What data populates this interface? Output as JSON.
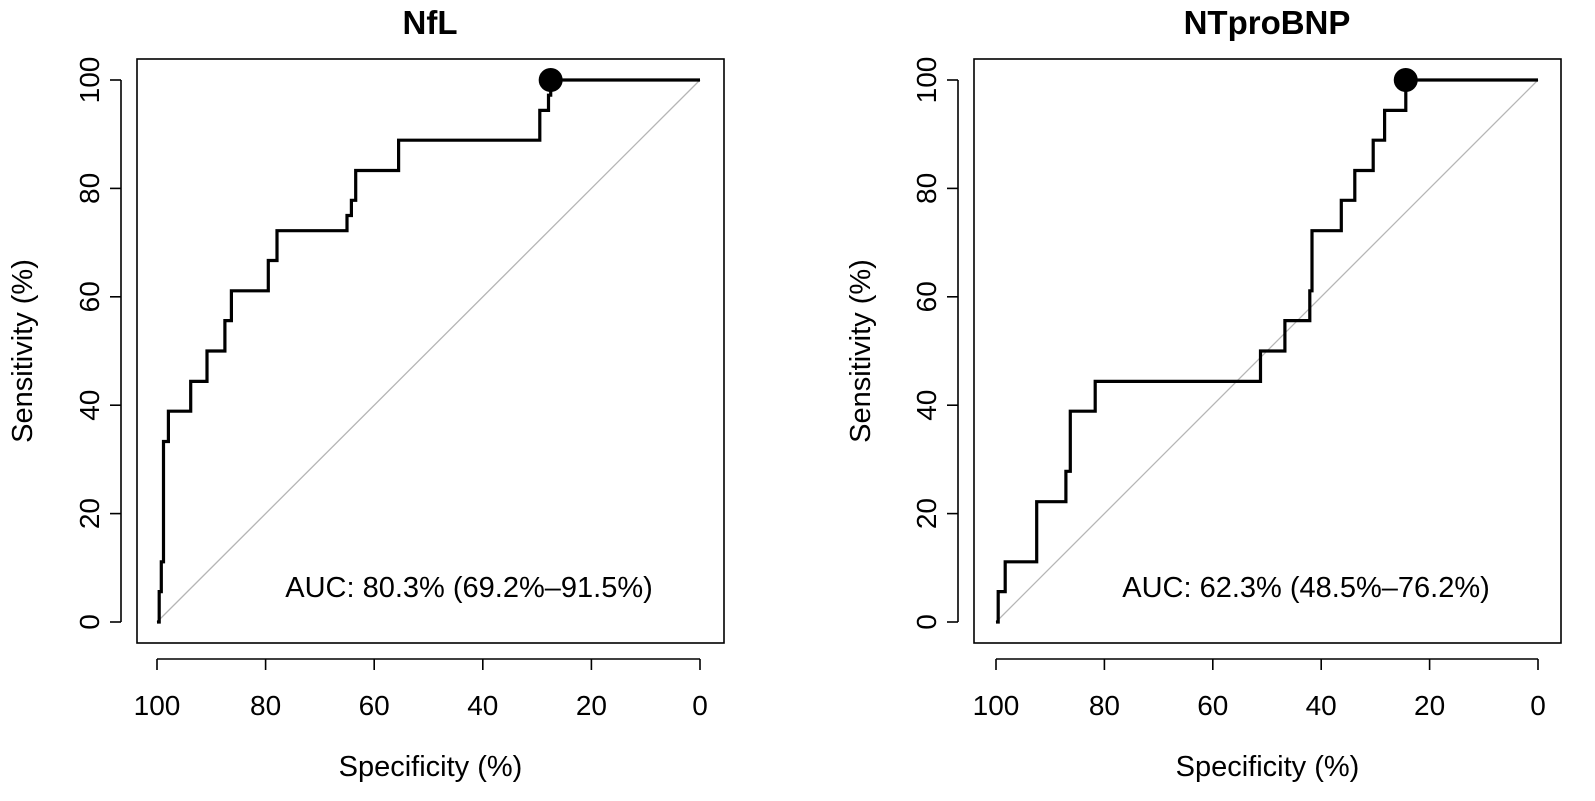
{
  "chart_data": [
    {
      "type": "line",
      "title": "NfL",
      "xlabel": "Specificity (%)",
      "ylabel": "Sensitivity (%)",
      "xlim": [
        100,
        0
      ],
      "ylim": [
        0,
        100
      ],
      "x_ticks": [
        "100",
        "80",
        "60",
        "40",
        "20",
        "0"
      ],
      "y_ticks": [
        "0",
        "20",
        "40",
        "60",
        "80",
        "100"
      ],
      "annotation": "AUC: 80.3% (69.2%–91.5%)",
      "reference_line": "diagonal",
      "optimal_point": {
        "specificity": 27.5,
        "sensitivity": 100
      },
      "series": [
        {
          "name": "ROC",
          "specificity": [
            100,
            99.6,
            99.6,
            99.2,
            99.2,
            98.8,
            98.8,
            97.9,
            97.9,
            93.8,
            93.8,
            90.8,
            90.8,
            87.5,
            87.5,
            86.3,
            86.3,
            79.5,
            79.5,
            77.9,
            77.9,
            65,
            65,
            64.2,
            64.2,
            63.4,
            63.4,
            55.5,
            55.5,
            29.5,
            29.5,
            27.9,
            27.9,
            27.5,
            27.5,
            0
          ],
          "sensitivity": [
            0,
            0,
            5.6,
            5.6,
            11.1,
            11.1,
            33.3,
            33.3,
            38.9,
            38.9,
            44.4,
            44.4,
            50,
            50,
            55.6,
            55.6,
            61.1,
            61.1,
            66.7,
            66.7,
            72.2,
            72.2,
            75,
            75,
            77.8,
            77.8,
            83.3,
            83.3,
            88.9,
            88.9,
            94.4,
            94.4,
            97.2,
            97.2,
            100,
            100
          ]
        }
      ]
    },
    {
      "type": "line",
      "title": "NTproBNP",
      "xlabel": "Specificity (%)",
      "ylabel": "Sensitivity (%)",
      "xlim": [
        100,
        0
      ],
      "ylim": [
        0,
        100
      ],
      "x_ticks": [
        "100",
        "80",
        "60",
        "40",
        "20",
        "0"
      ],
      "y_ticks": [
        "0",
        "20",
        "40",
        "60",
        "80",
        "100"
      ],
      "annotation": "AUC: 62.3% (48.5%–76.2%)",
      "reference_line": "diagonal",
      "optimal_point": {
        "specificity": 24.4,
        "sensitivity": 100
      },
      "series": [
        {
          "name": "ROC",
          "specificity": [
            100,
            99.6,
            99.6,
            98.3,
            98.3,
            92.5,
            92.5,
            87.1,
            87.1,
            86.3,
            86.3,
            81.7,
            81.7,
            51.2,
            51.2,
            46.7,
            46.7,
            42.1,
            42.1,
            41.7,
            41.7,
            36.3,
            36.3,
            33.8,
            33.8,
            30.4,
            30.4,
            28.3,
            28.3,
            24.4,
            24.4,
            0
          ],
          "sensitivity": [
            0,
            0,
            5.6,
            5.6,
            11.1,
            11.1,
            22.2,
            22.2,
            27.8,
            27.8,
            38.9,
            38.9,
            44.4,
            44.4,
            50,
            50,
            55.6,
            55.6,
            61.1,
            61.1,
            72.2,
            72.2,
            77.8,
            77.8,
            83.3,
            83.3,
            88.9,
            88.9,
            94.4,
            94.4,
            100,
            100
          ]
        }
      ]
    }
  ]
}
